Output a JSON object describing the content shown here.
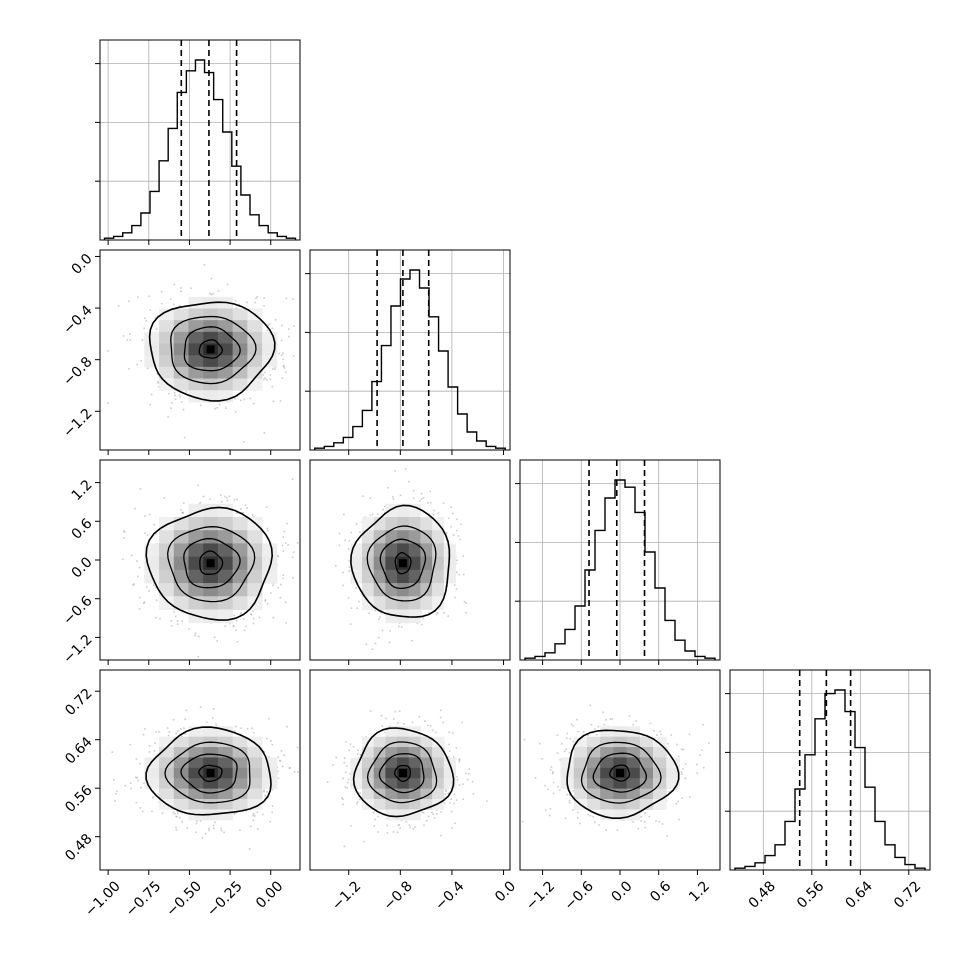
{
  "chart_data": {
    "type": "corner",
    "title": "",
    "parameters": [
      {
        "range": [
          -1.05,
          0.18
        ],
        "quantiles": [
          -0.55,
          -0.38,
          -0.21
        ],
        "ticks": [
          "−1.00",
          "−0.75",
          "−0.50",
          "−0.25",
          "0.00"
        ],
        "tick_values": [
          -1.0,
          -0.75,
          -0.5,
          -0.25,
          0.0
        ]
      },
      {
        "range": [
          -1.5,
          0.05
        ],
        "quantiles": [
          -0.98,
          -0.78,
          -0.58
        ],
        "ticks": [
          "−1.2",
          "−0.8",
          "−0.4",
          "0.0"
        ],
        "tick_values": [
          -1.2,
          -0.8,
          -0.4,
          0.0
        ]
      },
      {
        "range": [
          -1.55,
          1.55
        ],
        "quantiles": [
          -0.48,
          -0.05,
          0.38
        ],
        "ticks": [
          "−1.2",
          "−0.6",
          "0.0",
          "0.6",
          "1.2"
        ],
        "tick_values": [
          -1.2,
          -0.6,
          0.0,
          0.6,
          1.2
        ]
      },
      {
        "range": [
          0.425,
          0.755
        ],
        "quantiles": [
          0.54,
          0.584,
          0.624
        ],
        "ticks": [
          "0.48",
          "0.56",
          "0.64",
          "0.72"
        ],
        "tick_values": [
          0.48,
          0.56,
          0.64,
          0.72
        ]
      }
    ],
    "histograms": [
      {
        "counts": [
          1,
          2,
          4,
          8,
          15,
          27,
          44,
          62,
          82,
          94,
          100,
          93,
          78,
          60,
          41,
          25,
          14,
          8,
          4,
          2,
          1
        ]
      },
      {
        "counts": [
          1,
          2,
          4,
          7,
          13,
          22,
          38,
          58,
          80,
          95,
          100,
          90,
          74,
          55,
          35,
          20,
          10,
          5,
          2,
          1
        ]
      },
      {
        "counts": [
          1,
          2,
          4,
          9,
          17,
          30,
          50,
          72,
          90,
          100,
          96,
          82,
          60,
          40,
          22,
          11,
          5,
          2,
          1
        ]
      },
      {
        "counts": [
          1,
          2,
          4,
          8,
          14,
          27,
          45,
          64,
          84,
          98,
          100,
          88,
          68,
          46,
          27,
          14,
          7,
          3,
          1
        ]
      }
    ],
    "marginal_ylim": [
      0,
      100
    ],
    "panels": [
      {
        "row": 1,
        "col": 0,
        "center": [
          -0.37,
          -0.72
        ],
        "contour_radii_data": [
          [
            0.07,
            0.07
          ],
          [
            0.17,
            0.17
          ],
          [
            0.26,
            0.26
          ],
          [
            0.38,
            0.38
          ]
        ]
      },
      {
        "row": 2,
        "col": 0,
        "center": [
          -0.37,
          -0.05
        ],
        "contour_radii_data": [
          [
            0.07,
            0.18
          ],
          [
            0.17,
            0.38
          ],
          [
            0.26,
            0.58
          ],
          [
            0.38,
            0.86
          ]
        ]
      },
      {
        "row": 2,
        "col": 1,
        "center": [
          -0.78,
          -0.05
        ],
        "contour_radii_data": [
          [
            0.06,
            0.16
          ],
          [
            0.17,
            0.38
          ],
          [
            0.26,
            0.58
          ],
          [
            0.38,
            0.86
          ]
        ]
      },
      {
        "row": 3,
        "col": 0,
        "center": [
          -0.37,
          0.585
        ],
        "contour_radii_data": [
          [
            0.07,
            0.013
          ],
          [
            0.17,
            0.032
          ],
          [
            0.26,
            0.05
          ],
          [
            0.38,
            0.072
          ]
        ]
      },
      {
        "row": 3,
        "col": 1,
        "center": [
          -0.78,
          0.585
        ],
        "contour_radii_data": [
          [
            0.06,
            0.013
          ],
          [
            0.17,
            0.032
          ],
          [
            0.26,
            0.05
          ],
          [
            0.38,
            0.072
          ]
        ]
      },
      {
        "row": 3,
        "col": 2,
        "center": [
          0.0,
          0.585
        ],
        "contour_radii_data": [
          [
            0.15,
            0.013
          ],
          [
            0.4,
            0.032
          ],
          [
            0.6,
            0.05
          ],
          [
            0.86,
            0.072
          ]
        ]
      }
    ],
    "grid": true,
    "legend": "none"
  }
}
